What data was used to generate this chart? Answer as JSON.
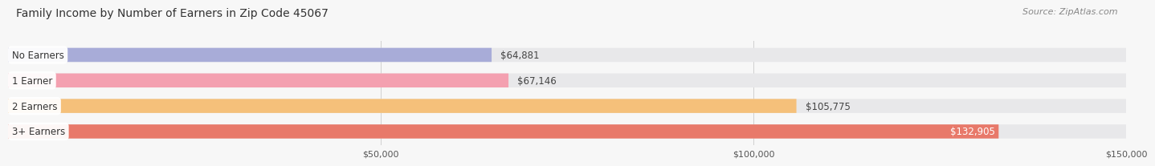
{
  "title": "Family Income by Number of Earners in Zip Code 45067",
  "source": "Source: ZipAtlas.com",
  "categories": [
    "No Earners",
    "1 Earner",
    "2 Earners",
    "3+ Earners"
  ],
  "values": [
    64881,
    67146,
    105775,
    132905
  ],
  "labels": [
    "$64,881",
    "$67,146",
    "$105,775",
    "$132,905"
  ],
  "bar_colors": [
    "#a8acd8",
    "#f4a0b0",
    "#f5c07a",
    "#e8796a"
  ],
  "bg_pill_color": "#e8e8ea",
  "xmin": 0,
  "xmax": 150000,
  "xticks": [
    50000,
    100000,
    150000
  ],
  "xtick_labels": [
    "$50,000",
    "$100,000",
    "$150,000"
  ],
  "title_fontsize": 10,
  "source_fontsize": 8,
  "label_fontsize": 8.5,
  "category_fontsize": 8.5,
  "background_color": "#f7f7f7",
  "grid_color": "#d0d0d0",
  "label_inside_indices": [
    3
  ],
  "label_inside_color": "white",
  "label_outside_color": "#444444"
}
